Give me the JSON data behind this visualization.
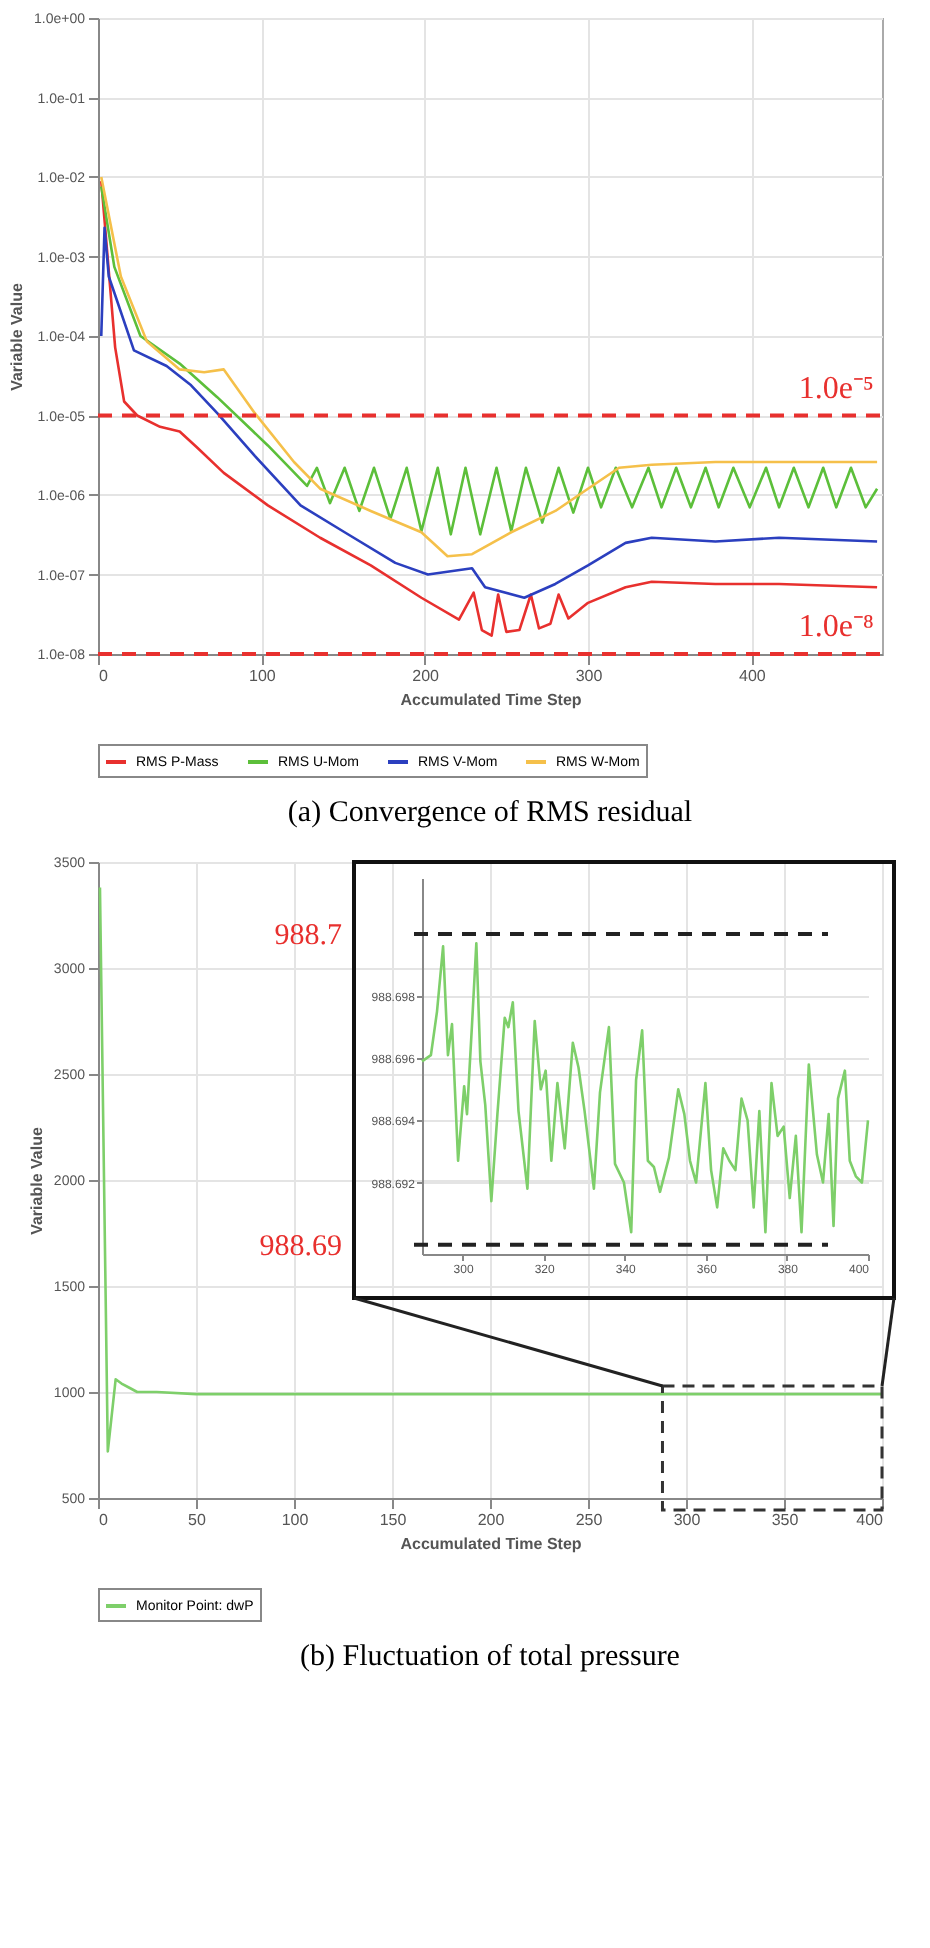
{
  "chart_data": [
    {
      "type": "line",
      "title": "(a) Convergence of RMS residual",
      "xlabel": "Accumulated Time Step",
      "ylabel": "Variable Value",
      "log": "y",
      "grid": true,
      "legend": "bottom",
      "xlim": [
        0,
        480
      ],
      "xticks": [
        0,
        100,
        200,
        300,
        400
      ],
      "ylim": [
        1e-08,
        1
      ],
      "yticks": [
        {
          "value": 1,
          "label": "1.0e+00"
        },
        {
          "value": 0.1,
          "label": "1.0e-01"
        },
        {
          "value": 0.01,
          "label": "1.0e-02"
        },
        {
          "value": 0.001,
          "label": "1.0e-03"
        },
        {
          "value": 0.0001,
          "label": "1.0e-04"
        },
        {
          "value": 1e-05,
          "label": "1.0e-05"
        },
        {
          "value": 1e-06,
          "label": "1.0e-06"
        },
        {
          "value": 1e-07,
          "label": "1.0e-07"
        },
        {
          "value": 1e-08,
          "label": "1.0e-08"
        }
      ],
      "series": [
        {
          "name": "RMS P-Mass",
          "color": "#e8302e",
          "x": [
            2,
            10.5,
            16,
            24,
            38,
            50,
            61,
            77,
            104,
            136,
            167,
            198,
            221,
            230,
            235,
            241,
            245,
            250,
            258,
            265,
            270,
            277,
            282,
            288,
            300,
            323,
            339,
            378,
            417,
            477
          ],
          "values": [
            0.0089,
            7.2e-05,
            1.5e-05,
            1e-05,
            7.2e-06,
            6.3e-06,
            3.9e-06,
            1.9e-06,
            7.4e-07,
            2.9e-07,
            1.3e-07,
            5.1e-08,
            2.7e-08,
            5.9e-08,
            2e-08,
            1.7e-08,
            5.6e-08,
            1.9e-08,
            2e-08,
            5.6e-08,
            2.1e-08,
            2.4e-08,
            5.6e-08,
            2.8e-08,
            4.4e-08,
            6.9e-08,
            8.1e-08,
            7.6e-08,
            7.6e-08,
            6.9e-08
          ]
        },
        {
          "name": "RMS U-Mom",
          "color": "#5cbf3a",
          "x": [
            2,
            10,
            26,
            50,
            73,
            104,
            128,
            134,
            142,
            151,
            160,
            169,
            179,
            189,
            198,
            208,
            216,
            225,
            234,
            244,
            253,
            262,
            272,
            282,
            291,
            300,
            308,
            317,
            327,
            337,
            345,
            354,
            363,
            372,
            380,
            389,
            399,
            409,
            417,
            426,
            435,
            444,
            452,
            461,
            470,
            477
          ],
          "values": [
            0.0076,
            0.00074,
            0.0001,
            4.5e-05,
            1.7e-05,
            4.2e-06,
            1.3e-06,
            2.2e-06,
            7.9e-07,
            2.2e-06,
            6.3e-07,
            2.2e-06,
            5e-07,
            2.2e-06,
            3.5e-07,
            2.2e-06,
            3.2e-07,
            2.2e-06,
            3.2e-07,
            2.2e-06,
            3.5e-07,
            2.2e-06,
            4.5e-07,
            2.2e-06,
            6e-07,
            2.2e-06,
            7e-07,
            2.2e-06,
            7e-07,
            2.2e-06,
            7e-07,
            2.2e-06,
            7e-07,
            2.2e-06,
            7e-07,
            2.2e-06,
            7e-07,
            2.2e-06,
            7e-07,
            2.2e-06,
            7e-07,
            2.2e-06,
            7e-07,
            2.2e-06,
            7e-07,
            1.2e-06
          ]
        },
        {
          "name": "RMS V-Mom",
          "color": "#2b3fbf",
          "x": [
            2,
            4,
            6.6,
            10,
            22,
            42,
            57,
            73,
            96,
            124,
            151,
            182,
            202,
            229,
            237,
            261,
            280,
            300,
            323,
            339,
            378,
            417,
            477
          ],
          "values": [
            0.0001,
            0.0023,
            0.00056,
            0.00035,
            6.6e-05,
            4.2e-05,
            2.4e-05,
            1.07e-05,
            3.1e-06,
            7.4e-07,
            3.4e-07,
            1.4e-07,
            1e-07,
            1.2e-07,
            6.9e-08,
            5.1e-08,
            7.6e-08,
            1.3e-07,
            2.5e-07,
            2.9e-07,
            2.6e-07,
            2.9e-07,
            2.6e-07
          ]
        },
        {
          "name": "RMS W-Mom",
          "color": "#f5c04a",
          "x": [
            2,
            14,
            30,
            50,
            65,
            77,
            96,
            120,
            136,
            167,
            198,
            214,
            229,
            253,
            280,
            300,
            319,
            339,
            378,
            417,
            477
          ],
          "values": [
            0.01,
            0.00056,
            8.5e-05,
            3.8e-05,
            3.5e-05,
            3.8e-05,
            1.07e-05,
            2.6e-06,
            1.2e-06,
            6.3e-07,
            3.4e-07,
            1.7e-07,
            1.8e-07,
            3.4e-07,
            6.3e-07,
            1.2e-06,
            2.2e-06,
            2.4e-06,
            2.6e-06,
            2.6e-06,
            2.6e-06
          ]
        }
      ],
      "ref_lines": [
        {
          "axis": "y",
          "value": 1e-05,
          "label": "1.0e⁻⁵",
          "color": "#e8302e",
          "line_style": "dashed"
        },
        {
          "axis": "y",
          "value": 1e-08,
          "label": "1.0e⁻⁸",
          "color": "#e8302e",
          "line_style": "dashed"
        }
      ]
    },
    {
      "type": "line",
      "title": "(b) Fluctuation of total pressure",
      "xlabel": "Accumulated Time Step",
      "ylabel": "Variable Value",
      "grid": true,
      "legend": "bottom",
      "xlim": [
        0,
        400
      ],
      "xticks": [
        0,
        50,
        100,
        150,
        200,
        250,
        300,
        350,
        400
      ],
      "ylim": [
        500,
        3500
      ],
      "yticks": [
        500,
        1000,
        1500,
        2000,
        2500,
        3000,
        3500
      ],
      "series": [
        {
          "name": "Monitor Point: dwP",
          "color": "#7ecf6a",
          "x": [
            1,
            5,
            9,
            12,
            16,
            20,
            30,
            50,
            100,
            200,
            300,
            400
          ],
          "values": [
            3380,
            720,
            1060,
            1040,
            1020,
            1000,
            1000,
            990,
            990,
            990,
            990,
            990
          ]
        }
      ]
    },
    {
      "type": "line",
      "grid": "y",
      "xlim": [
        290,
        400
      ],
      "xticks": [
        300,
        320,
        340,
        360,
        380,
        400
      ],
      "ylim": [
        988.6897,
        988.7018
      ],
      "yticks": [
        988.692,
        988.694,
        988.696,
        988.698
      ],
      "series": [
        {
          "color": "#7ecf6a",
          "x": [
            290.0,
            292.2,
            293.7,
            295.2,
            296.4,
            297.4,
            298.9,
            300.4,
            301.1,
            302.3,
            303.4,
            304.4,
            305.6,
            307.1,
            308.6,
            310.4,
            311.3,
            312.4,
            313.8,
            316.0,
            317.8,
            319.3,
            320.5,
            321.9,
            323.4,
            325.2,
            327.2,
            328.6,
            330.1,
            332.4,
            333.9,
            336.1,
            337.6,
            339.8,
            341.6,
            342.8,
            344.3,
            345.7,
            347.2,
            348.7,
            350.9,
            353.2,
            354.7,
            356.1,
            357.6,
            359.9,
            361.3,
            362.8,
            364.3,
            365.8,
            367.3,
            368.8,
            370.3,
            371.8,
            373.2,
            374.7,
            376.2,
            377.7,
            379.2,
            380.7,
            382.2,
            383.6,
            385.4,
            387.4,
            388.9,
            390.3,
            391.5,
            392.6,
            394.3,
            395.5,
            397.0,
            398.5,
            400.0
          ],
          "values": [
            988.6959,
            988.6961,
            988.6975,
            988.6996,
            988.6961,
            988.6971,
            988.6927,
            988.6951,
            988.6942,
            988.697,
            988.6997,
            988.6959,
            988.6945,
            988.6914,
            988.6942,
            988.6973,
            988.697,
            988.6978,
            988.6943,
            988.6918,
            988.6972,
            988.695,
            988.6956,
            988.6927,
            988.6952,
            988.6931,
            988.6965,
            988.6957,
            988.6943,
            988.6918,
            988.6949,
            988.697,
            988.6926,
            988.692,
            988.6904,
            988.6953,
            988.6969,
            988.6927,
            988.6925,
            988.6917,
            988.6928,
            988.695,
            988.6942,
            988.6927,
            988.692,
            988.6952,
            988.6924,
            988.6912,
            988.6931,
            988.6927,
            988.6924,
            988.6947,
            988.694,
            988.6912,
            988.6943,
            988.6904,
            988.6952,
            988.6935,
            988.6938,
            988.6915,
            988.6935,
            988.6904,
            988.6958,
            988.6929,
            988.692,
            988.6942,
            988.6906,
            988.6947,
            988.6956,
            988.6927,
            988.6922,
            988.692,
            988.694
          ]
        }
      ],
      "ref_lines": [
        {
          "axis": "y",
          "value": 988.7,
          "label": "988.7",
          "color": "#222222",
          "line_style": "dashed"
        },
        {
          "axis": "y",
          "value": 988.69,
          "label": "988.69",
          "color": "#222222",
          "line_style": "dashed"
        }
      ]
    }
  ]
}
